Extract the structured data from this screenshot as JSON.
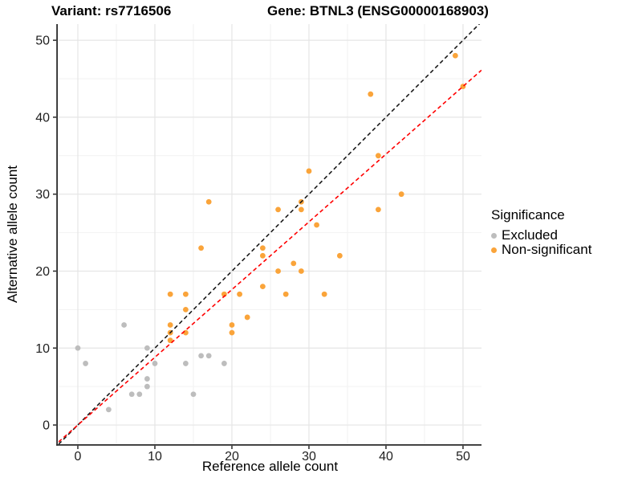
{
  "titles": {
    "variant": "Variant: rs7716506",
    "gene": "Gene: BTNL3 (ENSG00000168903)"
  },
  "chart_data": {
    "type": "scatter",
    "xlabel": "Reference allele count",
    "ylabel": "Alternative allele count",
    "xlim": [
      -2.5,
      52.4
    ],
    "ylim": [
      -2.5,
      52.1
    ],
    "x_ticks": [
      0,
      10,
      20,
      30,
      40,
      50
    ],
    "y_ticks": [
      0,
      10,
      20,
      30,
      40,
      50
    ],
    "minor_ticks": [
      5,
      15,
      25,
      35,
      45
    ],
    "grid": "major+minor",
    "legend": {
      "title": "Significance",
      "position": "right",
      "entries": [
        {
          "label": "Excluded",
          "color": "#BDBDBD"
        },
        {
          "label": "Non-significant",
          "color": "#FAA43A"
        }
      ]
    },
    "series": [
      {
        "name": "Excluded",
        "color": "#BDBDBD",
        "points": [
          [
            0,
            10
          ],
          [
            1,
            8
          ],
          [
            4,
            2
          ],
          [
            6,
            13
          ],
          [
            7,
            4
          ],
          [
            8,
            4
          ],
          [
            9,
            5
          ],
          [
            9,
            6
          ],
          [
            9,
            10
          ],
          [
            10,
            8
          ],
          [
            14,
            8
          ],
          [
            15,
            4
          ],
          [
            16,
            9
          ],
          [
            17,
            9
          ],
          [
            19,
            8
          ]
        ]
      },
      {
        "name": "Non-significant",
        "color": "#FAA43A",
        "points": [
          [
            12,
            11
          ],
          [
            12,
            12
          ],
          [
            12,
            13
          ],
          [
            12,
            17
          ],
          [
            14,
            12
          ],
          [
            14,
            15
          ],
          [
            14,
            17
          ],
          [
            16,
            23
          ],
          [
            17,
            29
          ],
          [
            19,
            17
          ],
          [
            20,
            12
          ],
          [
            20,
            13
          ],
          [
            21,
            17
          ],
          [
            22,
            14
          ],
          [
            24,
            18
          ],
          [
            24,
            22
          ],
          [
            24,
            23
          ],
          [
            26,
            20
          ],
          [
            26,
            28
          ],
          [
            27,
            17
          ],
          [
            28,
            21
          ],
          [
            29,
            20
          ],
          [
            29,
            28
          ],
          [
            29,
            29
          ],
          [
            30,
            33
          ],
          [
            31,
            26
          ],
          [
            32,
            17
          ],
          [
            34,
            22
          ],
          [
            38,
            43
          ],
          [
            39,
            28
          ],
          [
            39,
            35
          ],
          [
            42,
            30
          ],
          [
            49,
            48
          ],
          [
            50,
            44
          ]
        ]
      }
    ],
    "lines": [
      {
        "name": "identity-line",
        "slope": 1,
        "intercept": 0,
        "color": "#1A1A1A",
        "style": "dashed"
      },
      {
        "name": "fit-line",
        "slope": 0.88,
        "intercept": 0,
        "color": "#FF0000",
        "style": "dashed"
      }
    ],
    "colors": {
      "background": "#FFFFFF",
      "grid_major": "#E5E5E5",
      "grid_minor": "#F2F2F2",
      "axis": "#2A2A2A",
      "tick_label": "#1F1F1F"
    }
  }
}
